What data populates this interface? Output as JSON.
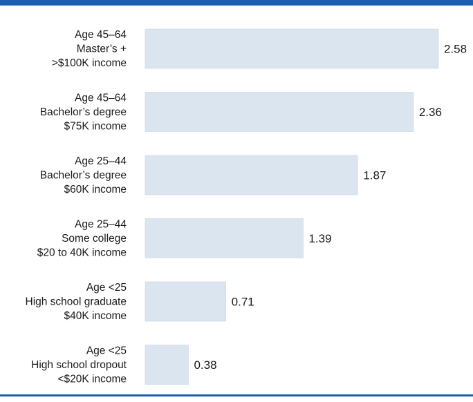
{
  "chart_data": {
    "type": "bar",
    "orientation": "horizontal",
    "categories": [
      [
        "Age 45–64",
        "Master’s +",
        ">$100K income"
      ],
      [
        "Age 45–64",
        "Bachelor’s degree",
        "$75K income"
      ],
      [
        "Age 25–44",
        "Bachelor’s degree",
        "$60K income"
      ],
      [
        "Age 25–44",
        "Some college",
        "$20 to 40K income"
      ],
      [
        "Age <25",
        "High school graduate",
        "$40K income"
      ],
      [
        "Age <25",
        "High school dropout",
        "<$20K income"
      ]
    ],
    "values": [
      2.58,
      2.36,
      1.87,
      1.39,
      0.71,
      0.38
    ],
    "value_labels": [
      "2.58",
      "2.36",
      "1.87",
      "1.39",
      "0.71",
      "0.38"
    ],
    "title": "",
    "xlabel": "",
    "ylabel": "",
    "xlim": [
      0,
      2.58
    ],
    "grid": false,
    "legend": "none",
    "colors": {
      "bar": "#dbe5f0",
      "rule": "#1b5fae"
    }
  }
}
